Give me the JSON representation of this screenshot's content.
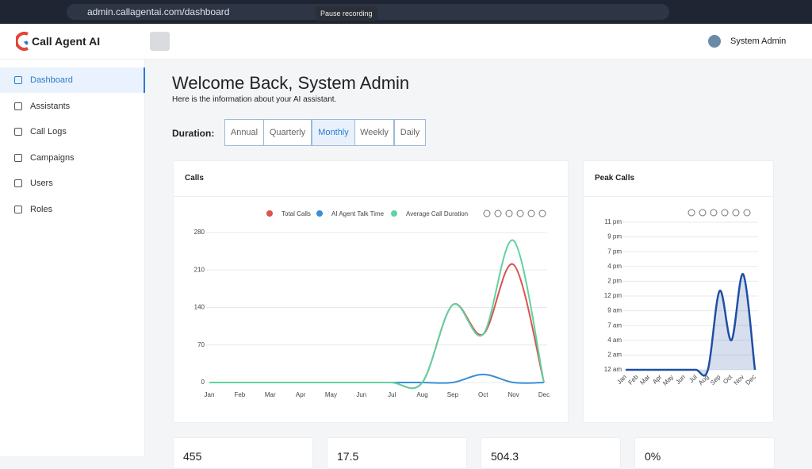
{
  "browser": {
    "url": "admin.callagentai.com/dashboard",
    "tooltip": "Pause recording"
  },
  "brand": "Call Agent AI",
  "user": "System Admin",
  "sidebar": [
    "Dashboard",
    "Assistants",
    "Call Logs",
    "Campaigns",
    "Users",
    "Roles"
  ],
  "welcome": {
    "title": "Welcome Back, System Admin",
    "subtitle": "Here is the information about your AI assistant."
  },
  "duration": {
    "label": "Duration:",
    "options": [
      "Annual",
      "Quarterly",
      "Monthly",
      "Weekly",
      "Daily"
    ],
    "selected": "Monthly"
  },
  "chart_data": [
    {
      "type": "line",
      "title": "Calls",
      "categories": [
        "Jan",
        "Feb",
        "Mar",
        "Apr",
        "May",
        "Jun",
        "Jul",
        "Aug",
        "Sep",
        "Oct",
        "Nov",
        "Dec"
      ],
      "series": [
        {
          "name": "Total Calls",
          "color": "#d9534f",
          "values": [
            0,
            0,
            0,
            0,
            0,
            0,
            0,
            0,
            145,
            90,
            220,
            0
          ]
        },
        {
          "name": "AI Agent Talk Time",
          "color": "#3a8fd6",
          "values": [
            0,
            0,
            0,
            0,
            0,
            0,
            0,
            0,
            0,
            15,
            0,
            0
          ]
        },
        {
          "name": "Average Call Duration",
          "color": "#5fd3a0",
          "values": [
            0,
            0,
            0,
            0,
            0,
            0,
            0,
            0,
            145,
            90,
            265,
            0
          ]
        }
      ],
      "ylim": [
        0,
        280
      ],
      "yticks": [
        0,
        70,
        140,
        210,
        280
      ],
      "grid": true,
      "legend": "top"
    },
    {
      "type": "area",
      "title": "Peak Calls",
      "categories": [
        "Jan",
        "Feb",
        "Mar",
        "Apr",
        "May",
        "Jun",
        "Jul",
        "Aug",
        "Sep",
        "Oct",
        "Nov",
        "Dec"
      ],
      "values": [
        0,
        0,
        0,
        0,
        0,
        0,
        0,
        0,
        12.3,
        4.6,
        14.9,
        0
      ],
      "color": "#1f4fa3",
      "ylim": [
        0,
        23
      ],
      "yticks": [
        {
          "value": 0,
          "label": "12 am"
        },
        {
          "value": 2.3,
          "label": "2 am"
        },
        {
          "value": 4.6,
          "label": "4 am"
        },
        {
          "value": 6.9,
          "label": "7 am"
        },
        {
          "value": 9.2,
          "label": "9 am"
        },
        {
          "value": 11.5,
          "label": "12 pm"
        },
        {
          "value": 13.8,
          "label": "2 pm"
        },
        {
          "value": 16.1,
          "label": "4 pm"
        },
        {
          "value": 18.4,
          "label": "7 pm"
        },
        {
          "value": 20.7,
          "label": "9 pm"
        },
        {
          "value": 23,
          "label": "11 pm"
        }
      ],
      "grid": true
    }
  ],
  "stats": [
    "455",
    "17.5",
    "504.3",
    "0%"
  ]
}
